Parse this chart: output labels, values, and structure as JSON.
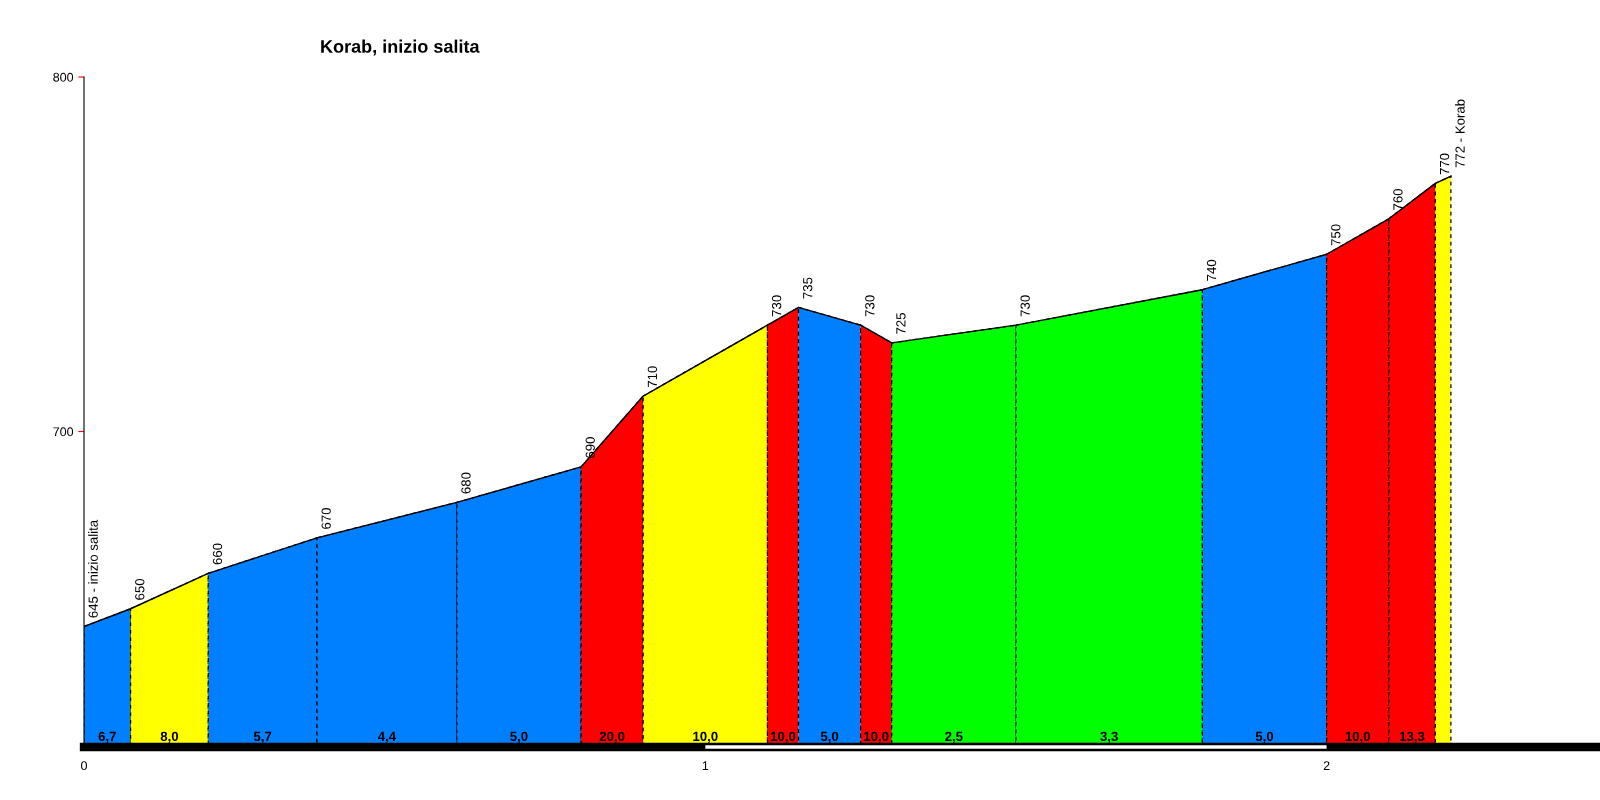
{
  "chart_data": {
    "type": "area",
    "title": "Korab, inizio salita",
    "series": [
      {
        "type": "line",
        "color": "#000000",
        "x": [
          0,
          0.075,
          0.2,
          0.375,
          0.6,
          0.8,
          0.9,
          1.1,
          1.15,
          1.25,
          1.3,
          1.5,
          1.8,
          2.0,
          2.1,
          2.175,
          2.2
        ],
        "values": [
          645,
          650,
          660,
          670,
          680,
          690,
          710,
          730,
          735,
          730,
          725,
          730,
          740,
          750,
          760,
          770,
          772
        ],
        "value_labels": [
          "645 - inizio salita",
          "650",
          "660",
          "670",
          "680",
          "690",
          "710",
          "730",
          "735",
          "730",
          "725",
          "730",
          "740",
          "750",
          "760",
          "770",
          "772 - Korab"
        ]
      },
      {
        "color": "#0080ff",
        "x": [
          0,
          0.075
        ],
        "values": [
          645,
          650
        ]
      },
      {
        "color": "#ffff00",
        "x": [
          0.075,
          0.2
        ],
        "values": [
          650,
          660
        ]
      },
      {
        "color": "#0080ff",
        "x": [
          0.2,
          0.375
        ],
        "values": [
          660,
          670
        ]
      },
      {
        "color": "#0080ff",
        "x": [
          0.375,
          0.6
        ],
        "values": [
          670,
          680
        ]
      },
      {
        "color": "#0080ff",
        "x": [
          0.6,
          0.8
        ],
        "values": [
          680,
          690
        ]
      },
      {
        "color": "#ff0000",
        "x": [
          0.8,
          0.9
        ],
        "values": [
          690,
          710
        ]
      },
      {
        "color": "#ffff00",
        "x": [
          0.9,
          1.1
        ],
        "values": [
          710,
          730
        ]
      },
      {
        "color": "#ff0000",
        "x": [
          1.1,
          1.15
        ],
        "values": [
          730,
          735
        ]
      },
      {
        "color": "#0080ff",
        "x": [
          1.15,
          1.25
        ],
        "values": [
          735,
          730
        ]
      },
      {
        "color": "#ff0000",
        "x": [
          1.25,
          1.3
        ],
        "values": [
          730,
          725
        ]
      },
      {
        "color": "#00ff00",
        "x": [
          1.3,
          1.5
        ],
        "values": [
          725,
          730
        ]
      },
      {
        "color": "#00ff00",
        "x": [
          1.5,
          1.8
        ],
        "values": [
          730,
          740
        ]
      },
      {
        "color": "#0080ff",
        "x": [
          1.8,
          2.0
        ],
        "values": [
          740,
          750
        ]
      },
      {
        "color": "#ff0000",
        "x": [
          2.0,
          2.1
        ],
        "values": [
          750,
          760
        ]
      },
      {
        "color": "#ff0000",
        "x": [
          2.1,
          2.175
        ],
        "values": [
          760,
          770
        ]
      },
      {
        "color": "#ffff00",
        "x": [
          2.175,
          2.2
        ],
        "values": [
          770,
          772
        ]
      }
    ],
    "annotations": [
      "6,7",
      "8,0",
      "5,7",
      "4,4",
      "5,0",
      "20,0",
      "10,0",
      "10,0",
      "5,0",
      "10,0",
      "2,5",
      "3,3",
      "5,0",
      "10,0",
      "13,3"
    ],
    "xlim": [
      0,
      2.44
    ],
    "xticks": [
      0,
      1,
      2
    ],
    "ylim": [
      611,
      800
    ],
    "yticks": [
      700,
      800
    ],
    "legend": false
  }
}
